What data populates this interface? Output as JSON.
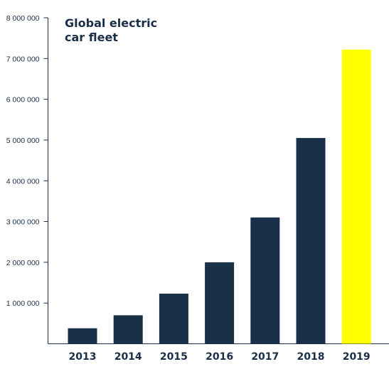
{
  "chart_data": {
    "type": "bar",
    "title_lines": [
      "Global electric",
      "car fleet"
    ],
    "xlabel": "",
    "ylabel": "",
    "categories": [
      "2013",
      "2014",
      "2015",
      "2016",
      "2017",
      "2018",
      "2019"
    ],
    "values": [
      380000,
      700000,
      1230000,
      2000000,
      3100000,
      5050000,
      7220000
    ],
    "ylim": [
      0,
      8000000
    ],
    "yticks": [
      1000000,
      2000000,
      3000000,
      4000000,
      5000000,
      6000000,
      7000000,
      8000000
    ],
    "ytick_labels": [
      "1 000 000",
      "2 000 000",
      "3 000 000",
      "4 000 000",
      "5 000 000",
      "6 000 000",
      "7 000 000",
      "8 000 000"
    ],
    "grid": false,
    "highlight_category": "2019",
    "colors": {
      "bar": "#1a3048",
      "highlight": "#ffff00",
      "axis": "#1a2e48",
      "text": "#1a2e48"
    }
  }
}
